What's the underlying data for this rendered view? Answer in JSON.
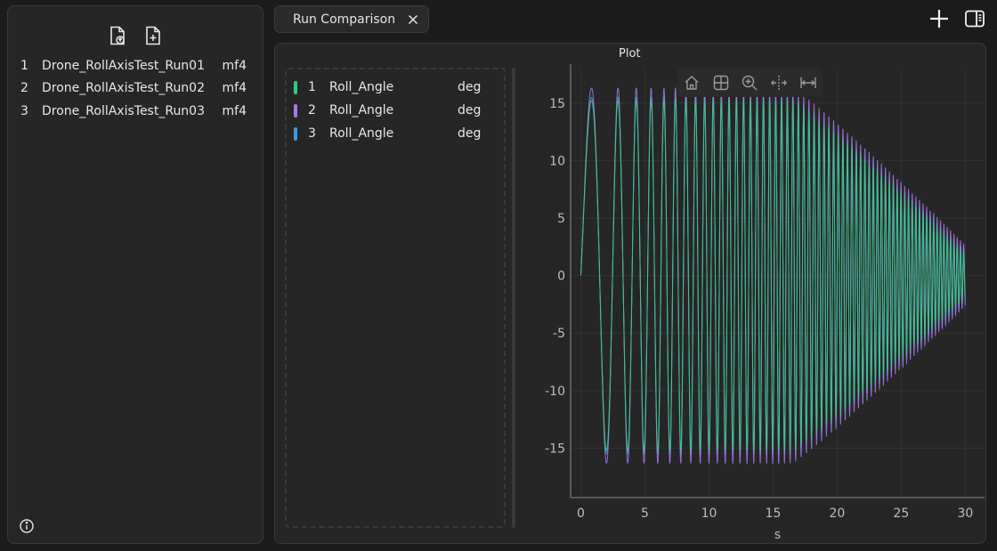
{
  "left_panel": {
    "toolbar": {
      "open_icon": "file-import-icon",
      "new_icon": "file-plus-icon"
    },
    "files": [
      {
        "index": "1",
        "name": "Drone_RollAxisTest_Run01",
        "ext": "mf4"
      },
      {
        "index": "2",
        "name": "Drone_RollAxisTest_Run02",
        "ext": "mf4"
      },
      {
        "index": "3",
        "name": "Drone_RollAxisTest_Run03",
        "ext": "mf4"
      }
    ]
  },
  "tab": {
    "label": "Run Comparison"
  },
  "plot": {
    "title": "Plot",
    "legend": [
      {
        "index": "1",
        "signal": "Roll_Angle",
        "unit": "deg",
        "color": "#2fcf7a"
      },
      {
        "index": "2",
        "signal": "Roll_Angle",
        "unit": "deg",
        "color": "#a37cf0"
      },
      {
        "index": "3",
        "signal": "Roll_Angle",
        "unit": "deg",
        "color": "#3f9be0"
      }
    ]
  },
  "chart_data": {
    "type": "line",
    "xlabel": "s",
    "ylabel": "",
    "xlim": [
      -0.8,
      31.5
    ],
    "ylim": [
      -19.3,
      18
    ],
    "xticks": [
      0,
      5,
      10,
      15,
      20,
      25,
      30
    ],
    "yticks": [
      15,
      10,
      5,
      0,
      -5,
      -10,
      -15
    ],
    "grid": true,
    "series": [
      {
        "name": "Roll_Angle",
        "color": "#3f9be0",
        "amplitude_start": 15.5,
        "amplitude_end": 2.2,
        "freq_start_hz": 0.25,
        "freq_end_hz": 4.0,
        "x_start": 0,
        "x_end": 30
      },
      {
        "name": "Roll_Angle",
        "color": "#a37cf0",
        "amplitude_start": 16.3,
        "amplitude_end": 2.6,
        "freq_start_hz": 0.25,
        "freq_end_hz": 4.0,
        "x_start": 0,
        "x_end": 30
      },
      {
        "name": "Roll_Angle",
        "color": "#2fcf7a",
        "amplitude_start": 15.2,
        "amplitude_end": 1.8,
        "freq_start_hz": 0.25,
        "freq_end_hz": 4.0,
        "x_start": 0,
        "x_end": 30
      }
    ]
  }
}
